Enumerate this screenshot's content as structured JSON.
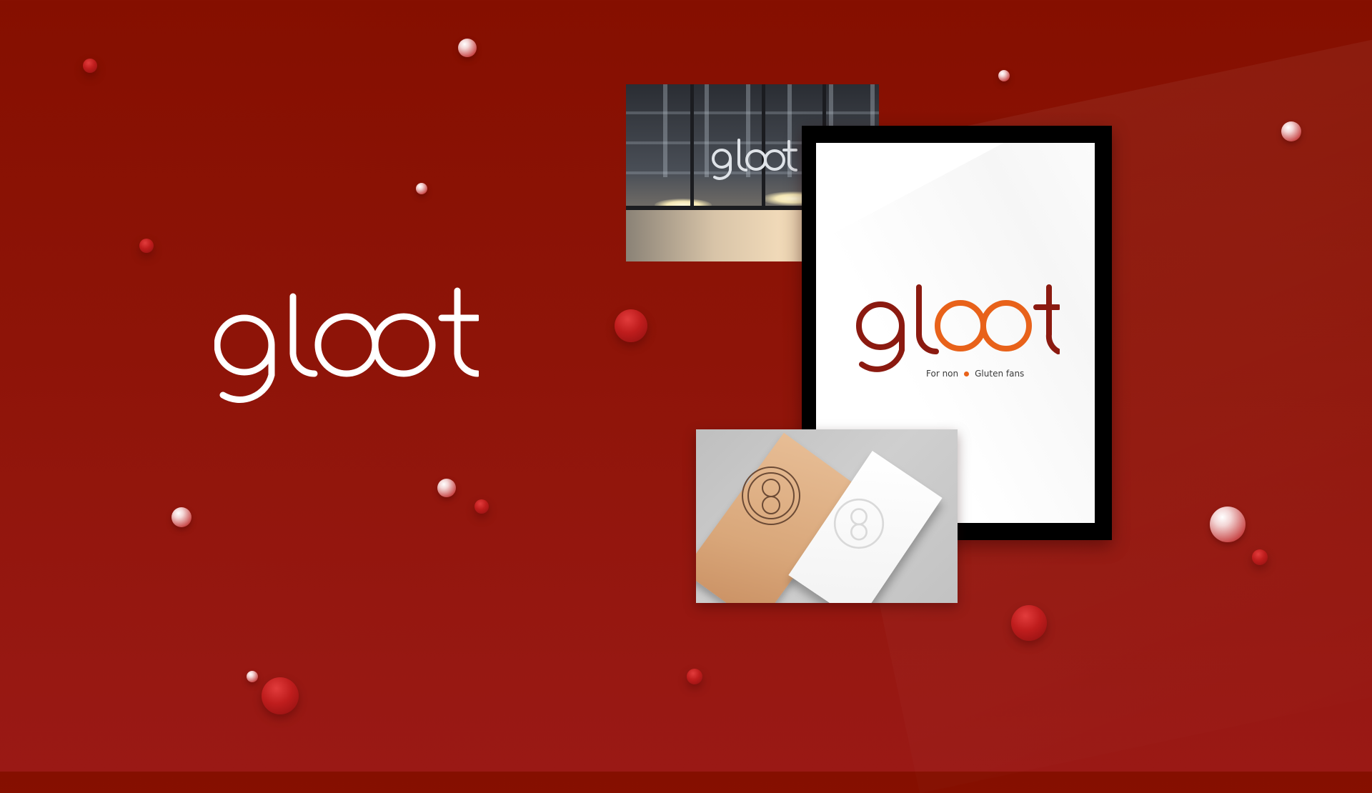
{
  "brand": {
    "wordmark": "gloot",
    "tagline_left": "For non",
    "tagline_right": "Gluten fans"
  },
  "colors": {
    "background": "#8a1206",
    "poster_dark_red": "#8b1a10",
    "poster_orange": "#e8621a",
    "board": "#000000",
    "poster_paper": "#ffffff"
  },
  "panels": {
    "storefront_photo": {
      "sign_text": "gloot"
    },
    "business_cards_photo": {
      "seal_icon": "double-ring-icon"
    }
  }
}
